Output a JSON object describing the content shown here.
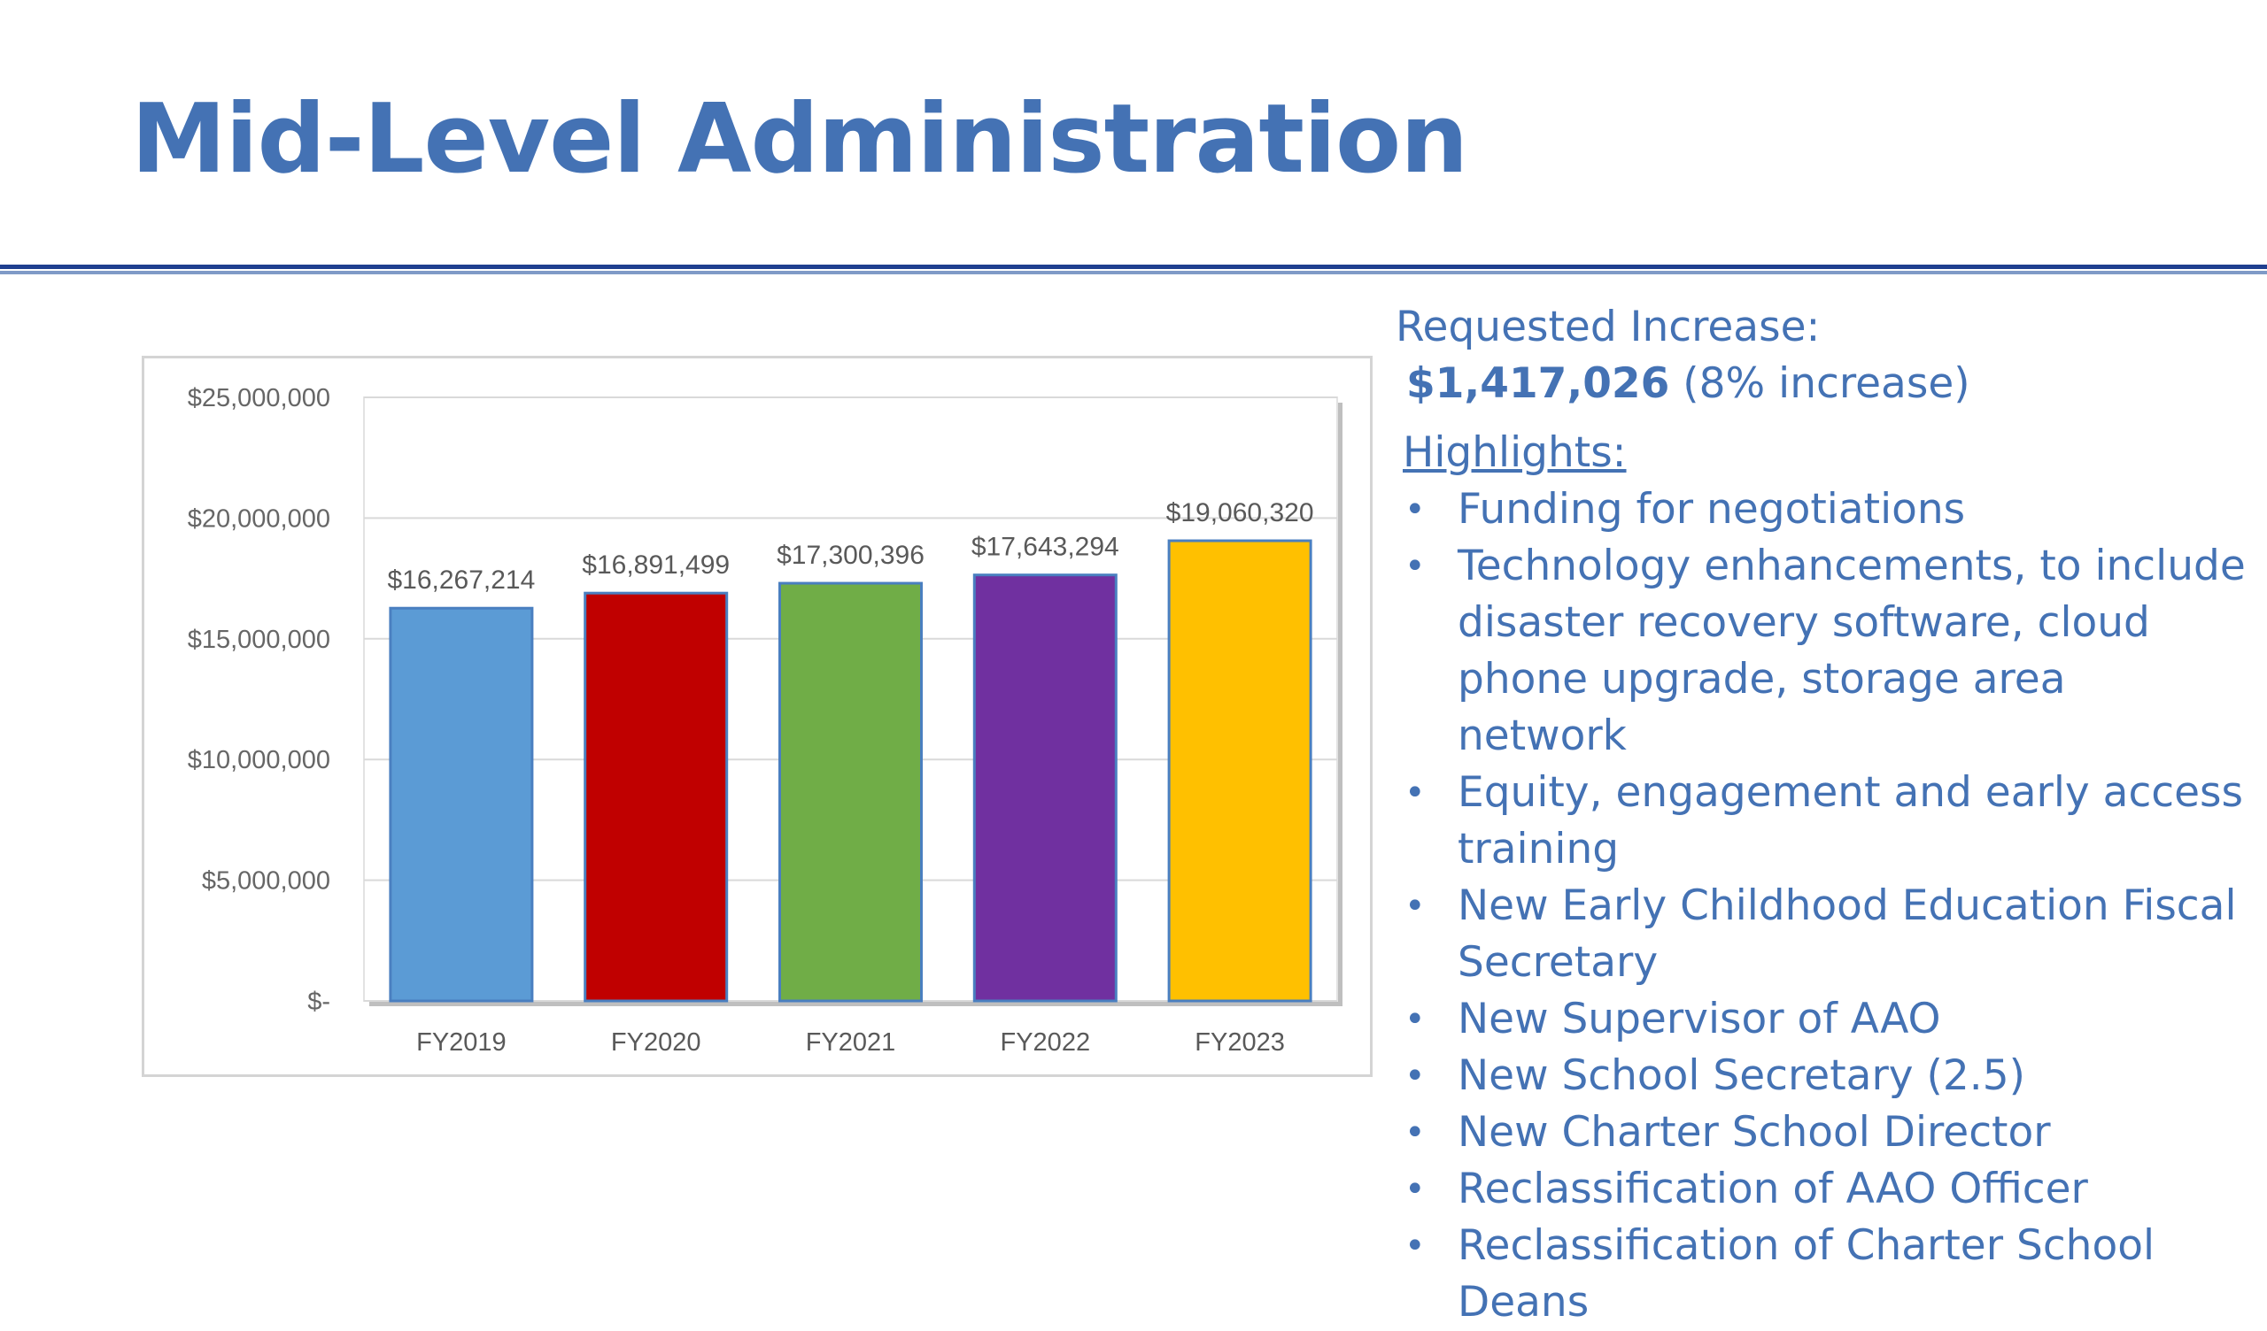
{
  "slide": {
    "title": "Mid-Level Administration"
  },
  "side_panel": {
    "requested_label": "Requested Increase:",
    "requested_amount": "$1,417,026",
    "requested_pct": "(8% increase)",
    "highlights_label": "Highlights:",
    "bullet_glyph": "•",
    "highlights": [
      "Funding for negotiations",
      "Technology enhancements, to include disaster recovery software, cloud phone upgrade, storage area network",
      "Equity, engagement and early access training",
      "New Early Childhood Education Fiscal Secretary",
      "New Supervisor of AAO",
      "New School Secretary (2.5)",
      "New Charter School Director",
      "Reclassification of AAO Officer",
      "Reclassification of Charter School Deans"
    ]
  },
  "colors": {
    "title": "#4472b4",
    "text": "#4472b4",
    "rule": "#1f3f8f"
  },
  "chart_data": {
    "type": "bar",
    "categories": [
      "FY2019",
      "FY2020",
      "FY2021",
      "FY2022",
      "FY2023"
    ],
    "values": [
      16267214,
      16891499,
      17300396,
      17643294,
      19060320
    ],
    "data_labels": [
      "$16,267,214",
      "$16,891,499",
      "$17,300,396",
      "$17,643,294",
      "$19,060,320"
    ],
    "bar_colors": [
      "#5b9bd5",
      "#c00000",
      "#70ad47",
      "#7030a0",
      "#ffc000"
    ],
    "ylim": [
      0,
      25000000
    ],
    "yticks": [
      0,
      5000000,
      10000000,
      15000000,
      20000000,
      25000000
    ],
    "ytick_labels": [
      "$-",
      "$5,000,000",
      "$10,000,000",
      "$15,000,000",
      "$20,000,000",
      "$25,000,000"
    ],
    "grid": true,
    "legend": false
  }
}
